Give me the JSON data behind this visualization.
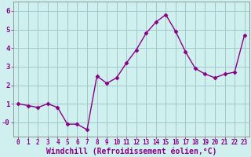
{
  "x": [
    0,
    1,
    2,
    3,
    4,
    5,
    6,
    7,
    8,
    9,
    10,
    11,
    12,
    13,
    14,
    15,
    16,
    17,
    18,
    19,
    20,
    21,
    22,
    23
  ],
  "y": [
    1.0,
    0.9,
    0.8,
    1.0,
    0.8,
    -0.1,
    -0.1,
    -0.4,
    2.5,
    2.1,
    2.4,
    3.2,
    3.9,
    4.8,
    5.4,
    5.8,
    4.9,
    3.8,
    2.9,
    2.6,
    2.4,
    2.6,
    2.7,
    4.7
  ],
  "line_color": "#880088",
  "marker": "D",
  "markersize": 2.5,
  "linewidth": 1.0,
  "bg_color": "#d0f0f0",
  "grid_color": "#a0c8c8",
  "xlabel": "Windchill (Refroidissement éolien,°C)",
  "xlabel_fontsize": 7.0,
  "xtick_fontsize": 5.5,
  "ytick_fontsize": 6.5,
  "ytick_labels": [
    "-0",
    "1",
    "2",
    "3",
    "4",
    "5",
    "6"
  ],
  "ytick_vals": [
    0,
    1,
    2,
    3,
    4,
    5,
    6
  ],
  "xtick_labels": [
    "0",
    "1",
    "2",
    "3",
    "4",
    "5",
    "6",
    "7",
    "8",
    "9",
    "10",
    "11",
    "12",
    "13",
    "14",
    "15",
    "16",
    "17",
    "18",
    "19",
    "20",
    "21",
    "22",
    "23"
  ],
  "ylim": [
    -0.75,
    6.5
  ],
  "xlim": [
    -0.5,
    23.5
  ],
  "spine_color": "#888888",
  "label_color": "#880088",
  "tick_color": "#880088"
}
